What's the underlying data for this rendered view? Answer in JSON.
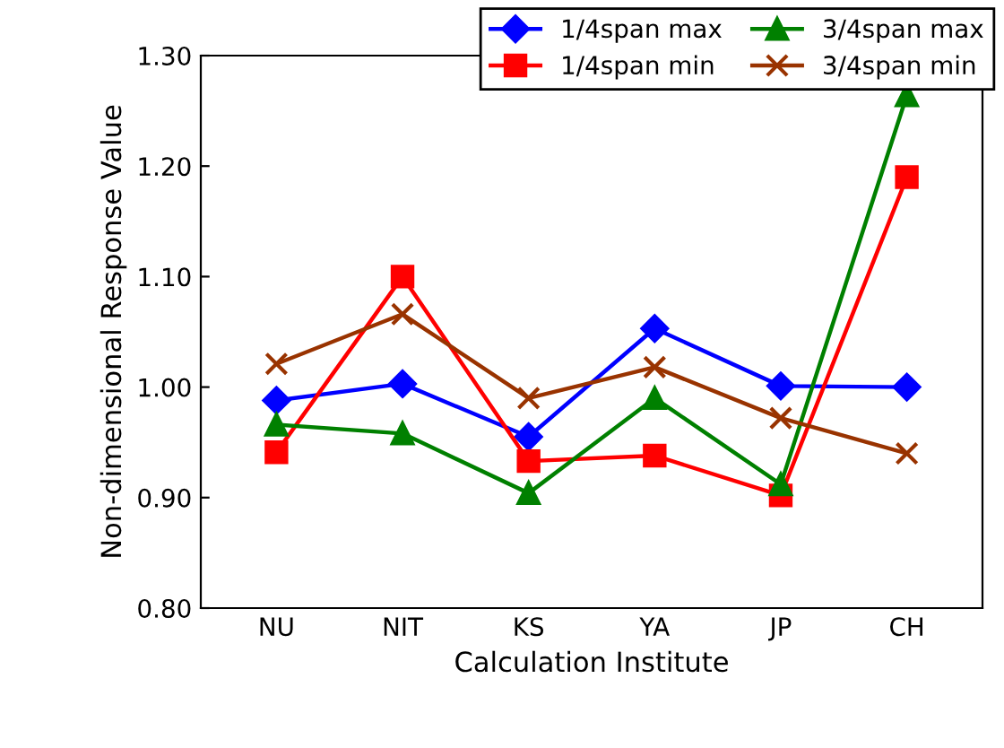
{
  "chart_data": {
    "type": "line",
    "xlabel": "Calculation Institute",
    "ylabel": "Non-dimensional Response Value",
    "categories": [
      "NU",
      "NIT",
      "KS",
      "YA",
      "JP",
      "CH"
    ],
    "ylim": [
      0.8,
      1.3
    ],
    "yticks": [
      {
        "value": 0.8,
        "label": "0.80"
      },
      {
        "value": 0.9,
        "label": "0.90"
      },
      {
        "value": 1.0,
        "label": "1.00"
      },
      {
        "value": 1.1,
        "label": "1.10"
      },
      {
        "value": 1.2,
        "label": "1.20"
      },
      {
        "value": 1.3,
        "label": "1.30"
      }
    ],
    "grid": false,
    "legend": "top right",
    "series": [
      {
        "name": "1/4span max",
        "color": "#0000ff",
        "marker": "diamond",
        "values": [
          0.988,
          1.003,
          0.955,
          1.053,
          1.001,
          1.0
        ]
      },
      {
        "name": "1/4span min",
        "color": "#ff0000",
        "marker": "square",
        "values": [
          0.941,
          1.1,
          0.933,
          0.938,
          0.902,
          1.19
        ]
      },
      {
        "name": "3/4span max",
        "color": "#008000",
        "marker": "triangle",
        "values": [
          0.966,
          0.958,
          0.904,
          0.99,
          0.912,
          1.264
        ]
      },
      {
        "name": "3/4span min",
        "color": "#993300",
        "marker": "cross",
        "values": [
          1.021,
          1.066,
          0.99,
          1.018,
          0.972,
          0.94
        ]
      }
    ]
  }
}
